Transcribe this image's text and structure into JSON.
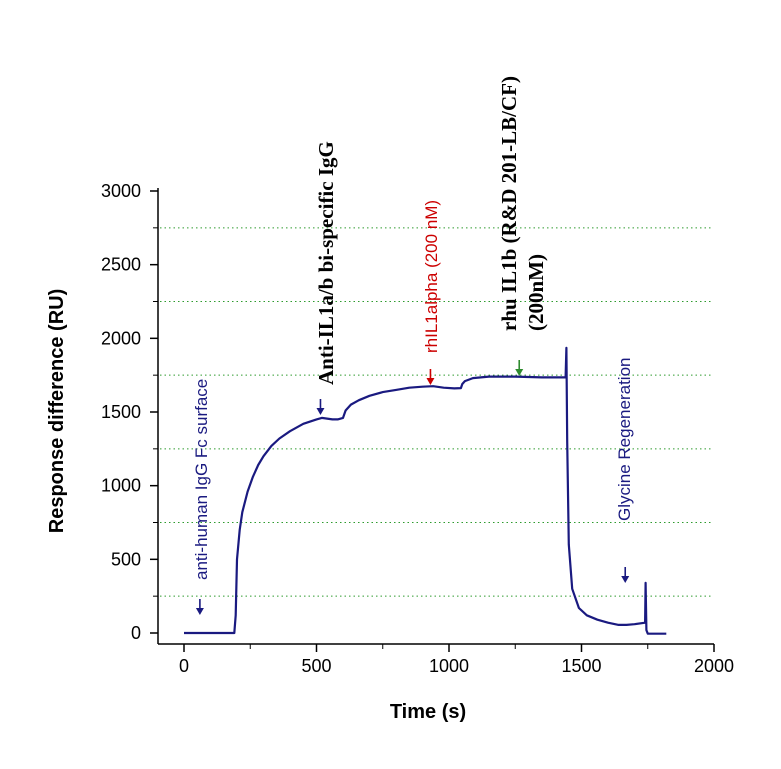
{
  "chart_data": {
    "type": "line",
    "title": "",
    "xlabel": "Time (s)",
    "ylabel": "Response difference (RU)",
    "xlim": [
      0,
      2000
    ],
    "ylim": [
      0,
      3000
    ],
    "x_ticks": [
      0,
      500,
      1000,
      1500,
      2000
    ],
    "y_ticks": [
      0,
      500,
      1000,
      1500,
      2000,
      2500,
      3000
    ],
    "x_tick_labels": [
      "0",
      "500",
      "1000",
      "1500",
      "2000"
    ],
    "y_tick_labels": [
      "0",
      "500",
      "1000",
      "1500",
      "2000",
      "2500",
      "3000"
    ],
    "grid_y": [
      250,
      750,
      1250,
      1750,
      2250,
      2750
    ],
    "grid": "dotted horizontal, green",
    "series": [
      {
        "color": "#1a1a80",
        "points": [
          [
            0,
            0
          ],
          [
            80,
            0
          ],
          [
            160,
            0
          ],
          [
            190,
            0
          ],
          [
            195,
            120
          ],
          [
            200,
            500
          ],
          [
            210,
            700
          ],
          [
            220,
            820
          ],
          [
            240,
            960
          ],
          [
            260,
            1060
          ],
          [
            280,
            1140
          ],
          [
            300,
            1200
          ],
          [
            330,
            1270
          ],
          [
            360,
            1320
          ],
          [
            400,
            1370
          ],
          [
            450,
            1420
          ],
          [
            500,
            1450
          ],
          [
            520,
            1460
          ],
          [
            540,
            1455
          ],
          [
            560,
            1450
          ],
          [
            580,
            1450
          ],
          [
            600,
            1460
          ],
          [
            610,
            1510
          ],
          [
            630,
            1550
          ],
          [
            660,
            1580
          ],
          [
            700,
            1610
          ],
          [
            750,
            1635
          ],
          [
            800,
            1650
          ],
          [
            850,
            1665
          ],
          [
            900,
            1672
          ],
          [
            940,
            1675
          ],
          [
            980,
            1665
          ],
          [
            1020,
            1660
          ],
          [
            1045,
            1662
          ],
          [
            1050,
            1690
          ],
          [
            1060,
            1710
          ],
          [
            1090,
            1730
          ],
          [
            1150,
            1740
          ],
          [
            1250,
            1740
          ],
          [
            1350,
            1735
          ],
          [
            1440,
            1735
          ],
          [
            1443,
            1935
          ],
          [
            1446,
            1300
          ],
          [
            1452,
            600
          ],
          [
            1465,
            300
          ],
          [
            1490,
            170
          ],
          [
            1520,
            120
          ],
          [
            1560,
            90
          ],
          [
            1600,
            70
          ],
          [
            1640,
            55
          ],
          [
            1670,
            55
          ],
          [
            1700,
            60
          ],
          [
            1740,
            70
          ],
          [
            1742,
            340
          ],
          [
            1745,
            20
          ],
          [
            1750,
            -5
          ],
          [
            1780,
            -5
          ],
          [
            1820,
            -5
          ]
        ]
      }
    ],
    "annotations": [
      {
        "text": "anti-human IgG Fc surface",
        "color": "#1a1a80",
        "font": "sans",
        "arrow_x": 60,
        "arrow_color": "#1a1a80"
      },
      {
        "text": "Anti-IL1a/b bi-specific IgG",
        "color": "#000000",
        "font": "serif",
        "arrow_x": 515,
        "arrow_color": "#1a1a80"
      },
      {
        "text": "rhIL1alpha (200 nM)",
        "color": "#cc0000",
        "font": "sans",
        "arrow_x": 930,
        "arrow_color": "#cc0000"
      },
      {
        "text": "rhu IL1b (R&D 201-LB/CF)",
        "text2": "(200nM)",
        "color": "#000000",
        "font": "serif",
        "arrow_x": 1265,
        "arrow_color": "#2e8b2e"
      },
      {
        "text": "Glycine Regeneration",
        "color": "#1a1a80",
        "font": "sans",
        "arrow_x": 1665,
        "arrow_color": "#1a1a80"
      }
    ]
  }
}
